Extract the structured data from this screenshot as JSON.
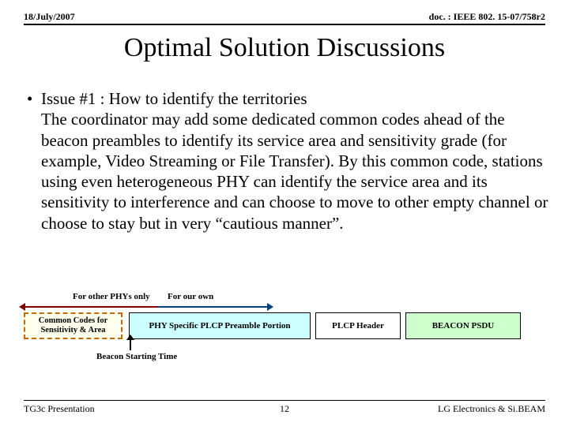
{
  "header": {
    "date": "18/July/2007",
    "doc": "doc. : IEEE 802. 15-07/758r2"
  },
  "title": "Optimal Solution Discussions",
  "body": {
    "heading": "Issue #1 : How to identify the territories",
    "paragraph": "The coordinator may add some dedicated common codes ahead of the beacon preambles to identify its service area and sensitivity grade (for example, Video Streaming or File Transfer). By this common code, stations using even heterogeneous PHY can identify the service area and its sensitivity to interference and can choose to move to other empty channel or choose to stay but in very “cautious manner”."
  },
  "diagram": {
    "label_other": "For other PHYs only",
    "label_own": "For our own",
    "block_common": "Common Codes for Sensitivity & Area",
    "block_preamble": "PHY Specific PLCP Preamble Portion",
    "block_header": "PLCP Header",
    "block_psdu": "BEACON PSDU",
    "starting": "Beacon Starting Time",
    "colors": {
      "arrow_left": "#800000",
      "arrow_right": "#004080",
      "common_border": "#cc6600",
      "common_bg": "#ffffee",
      "preamble_bg": "#ccffff",
      "header_bg": "#ffffff",
      "psdu_bg": "#ccffcc"
    }
  },
  "footer": {
    "left": "TG3c Presentation",
    "page": "12",
    "right": "LG Electronics & Si.BEAM"
  }
}
